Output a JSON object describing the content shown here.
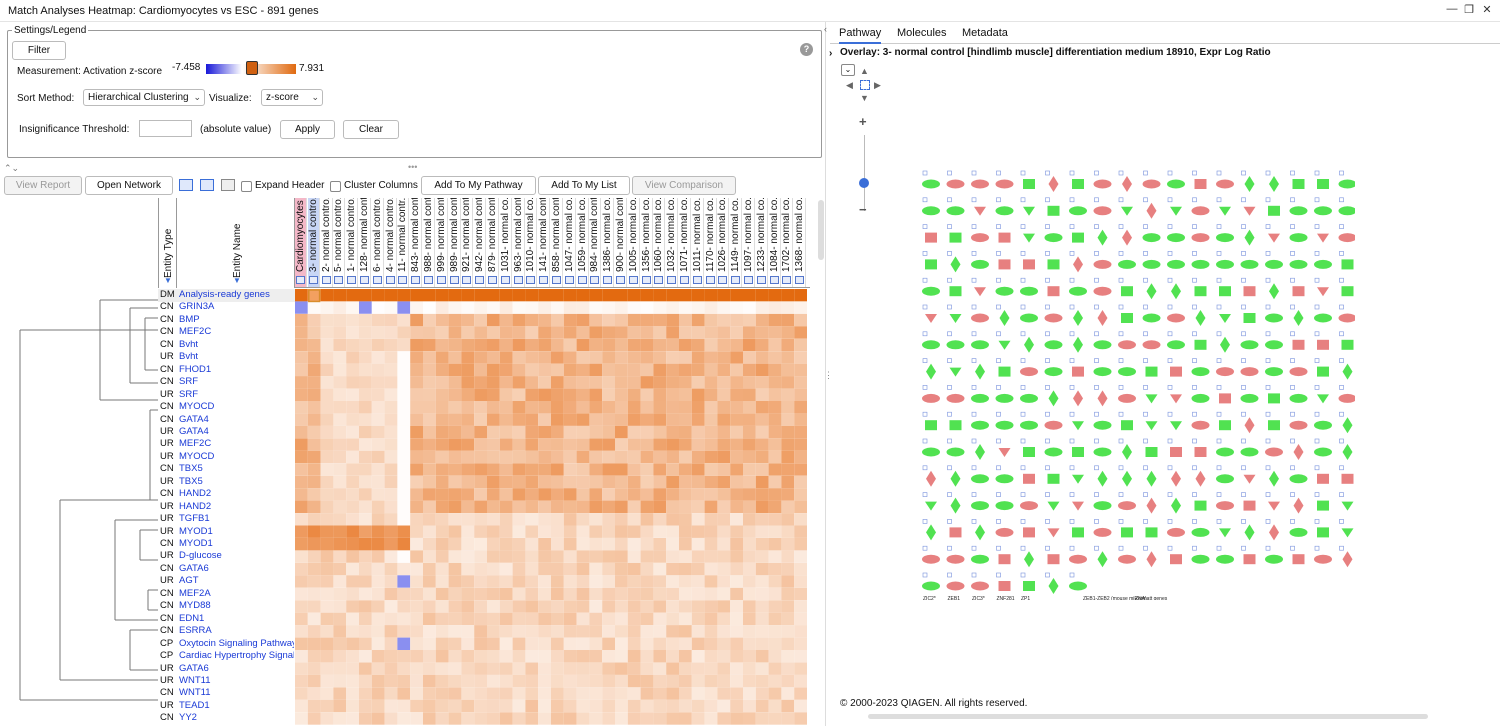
{
  "window": {
    "title": "Match Analyses Heatmap: Cardiomyocytes vs ESC - 891 genes",
    "minimize": "—",
    "restore": "❐",
    "close": "✕"
  },
  "settings": {
    "legend_title": "Settings/Legend",
    "filter_label": "Filter",
    "measurement_label": "Measurement: Activation z-score",
    "min_value": "-7.458",
    "max_value": "7.931",
    "sort_label": "Sort Method:",
    "sort_value": "Hierarchical Clustering",
    "visualize_label": "Visualize:",
    "visualize_value": "z-score",
    "threshold_label": "Insignificance Threshold:",
    "threshold_value": "",
    "threshold_suffix": "(absolute value)",
    "apply_label": "Apply",
    "clear_label": "Clear",
    "help_icon": "?"
  },
  "toolbar": {
    "view_report": "View Report",
    "open_network": "Open Network",
    "expand_header": "Expand Header",
    "cluster_columns": "Cluster Columns",
    "add_to_pathway": "Add To My Pathway",
    "add_to_list": "Add To My List",
    "view_comparison": "View Comparison"
  },
  "grid": {
    "entity_type_header": "Entity Type",
    "entity_name_header": "Entity Name",
    "columns": [
      "Cardiomyocytes v...",
      "3- normal contro...",
      "2- normal contro...",
      "5- normal contro...",
      "1- normal contro...",
      "128- normal contr...",
      "6- normal contro...",
      "4- normal contro...",
      "11- normal contr...",
      "843- normal contr...",
      "988- normal contr...",
      "999- normal contr...",
      "989- normal contr...",
      "921- normal contr...",
      "942- normal contr...",
      "879- normal contr...",
      "1031- normal co...",
      "963- normal contr...",
      "1010- normal co...",
      "141- normal contr...",
      "858- normal contr...",
      "1047- normal co...",
      "1059- normal co...",
      "984- normal contr...",
      "1386- normal co...",
      "900- normal contr...",
      "1005- normal co...",
      "1356- normal co...",
      "1060- normal co...",
      "1032- normal co...",
      "1071- normal co...",
      "1011- normal co...",
      "1170- normal co...",
      "1026- normal co...",
      "1149- normal co...",
      "1097- normal co...",
      "1233- normal co...",
      "1084- normal co...",
      "1702- normal co...",
      "1368- normal co..."
    ],
    "rows": [
      {
        "type": "DM",
        "name": "Analysis-ready genes"
      },
      {
        "type": "CN",
        "name": "GRIN3A"
      },
      {
        "type": "CN",
        "name": "BMP"
      },
      {
        "type": "CN",
        "name": "MEF2C"
      },
      {
        "type": "CN",
        "name": "Bvht"
      },
      {
        "type": "UR",
        "name": "Bvht"
      },
      {
        "type": "CN",
        "name": "FHOD1"
      },
      {
        "type": "CN",
        "name": "SRF"
      },
      {
        "type": "UR",
        "name": "SRF"
      },
      {
        "type": "CN",
        "name": "MYOCD"
      },
      {
        "type": "CN",
        "name": "GATA4"
      },
      {
        "type": "UR",
        "name": "GATA4"
      },
      {
        "type": "UR",
        "name": "MEF2C"
      },
      {
        "type": "UR",
        "name": "MYOCD"
      },
      {
        "type": "CN",
        "name": "TBX5"
      },
      {
        "type": "UR",
        "name": "TBX5"
      },
      {
        "type": "CN",
        "name": "HAND2"
      },
      {
        "type": "UR",
        "name": "HAND2"
      },
      {
        "type": "UR",
        "name": "TGFB1"
      },
      {
        "type": "UR",
        "name": "MYOD1"
      },
      {
        "type": "CN",
        "name": "MYOD1"
      },
      {
        "type": "UR",
        "name": "D-glucose"
      },
      {
        "type": "CN",
        "name": "GATA6"
      },
      {
        "type": "UR",
        "name": "AGT"
      },
      {
        "type": "CN",
        "name": "MEF2A"
      },
      {
        "type": "CN",
        "name": "MYD88"
      },
      {
        "type": "CN",
        "name": "EDN1"
      },
      {
        "type": "CN",
        "name": "ESRRA"
      },
      {
        "type": "CP",
        "name": "Oxytocin Signaling Pathway"
      },
      {
        "type": "CP",
        "name": "Cardiac Hypertrophy Signali..."
      },
      {
        "type": "UR",
        "name": "GATA6"
      },
      {
        "type": "UR",
        "name": "WNT11"
      },
      {
        "type": "CN",
        "name": "WNT11"
      },
      {
        "type": "UR",
        "name": "TEAD1"
      },
      {
        "type": "CN",
        "name": "YY2"
      }
    ]
  },
  "right_panel": {
    "tabs": [
      "Pathway",
      "Molecules",
      "Metadata"
    ],
    "overlay_text": "Overlay: 3- normal control [hindlimb muscle] differentiation medium 18910, Expr Log Ratio",
    "copyright": "© 2000-2023 QIAGEN. All rights reserved.",
    "zoom_plus": "+",
    "zoom_minus": "−",
    "last_row_labels": [
      "ZIC2*",
      "ZEB1",
      "ZIC3*",
      "ZNF281",
      "ZP1",
      "ZEB1-ZEB2 (mouse miRNA)",
      "Zermatt genes"
    ]
  },
  "colors": {
    "accent": "#3a6ed8",
    "link": "#1a3ad6",
    "heat_high": "#e06a10",
    "heat_low": "#1818d8",
    "node_up": "#e36a6a",
    "node_down": "#33dd33"
  }
}
